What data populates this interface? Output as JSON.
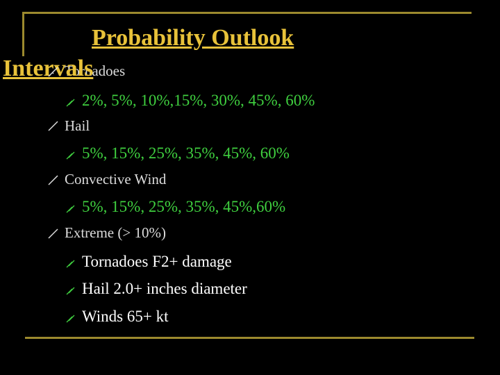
{
  "title_lines": [
    "Probability Outlook",
    "Intervals"
  ],
  "items": [
    {
      "label": "Tornadoes",
      "subitems": [
        "2%, 5%, 10%,15%, 30%, 45%, 60%"
      ]
    },
    {
      "label": "Hail",
      "subitems": [
        "5%, 15%, 25%, 35%, 45%, 60%"
      ]
    },
    {
      "label": "Convective Wind",
      "subitems": [
        "5%, 15%, 25%, 35%, 45%,60%"
      ]
    },
    {
      "label": "Extreme (> 10%)",
      "subitems": [
        "Tornadoes F2+ damage",
        "Hail 2.0+ inches diameter",
        "Winds 65+ kt"
      ]
    }
  ]
}
